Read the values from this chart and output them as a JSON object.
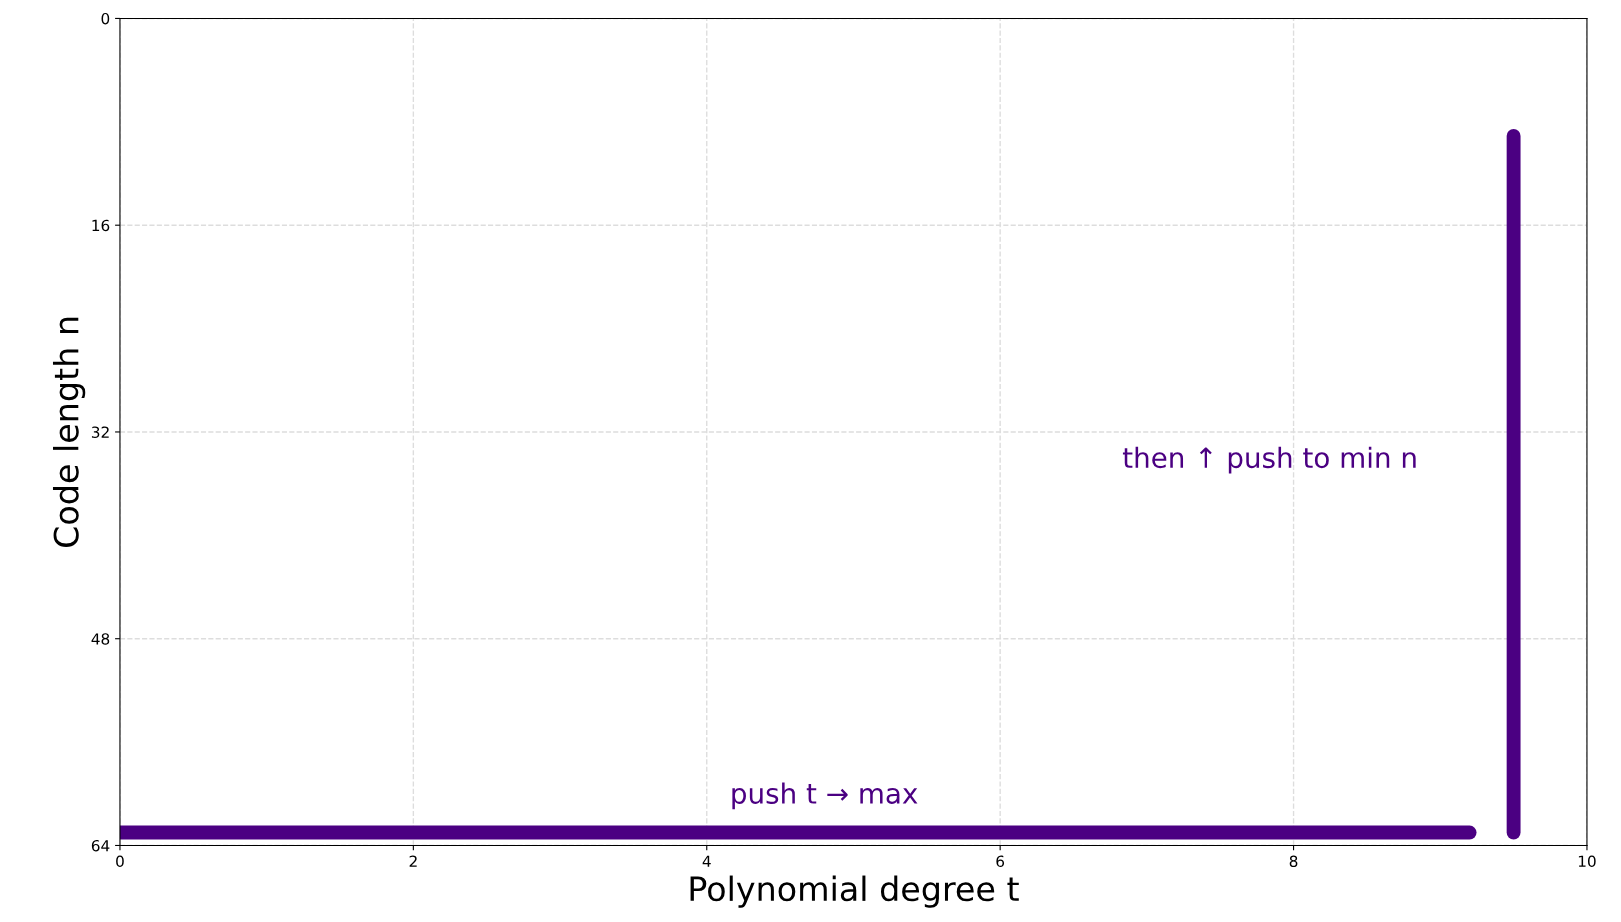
{
  "chart_data": {
    "type": "line",
    "xlabel": "Polynomial degree t",
    "ylabel": "Code length n",
    "series": [
      {
        "x": [
          0,
          9.2
        ],
        "values": [
          63,
          63
        ],
        "color": "#4b0082"
      },
      {
        "x": [
          9.5,
          9.5
        ],
        "values": [
          63,
          9.1
        ],
        "color": "#4b0082"
      }
    ],
    "annotations": [
      "push t → max",
      "then ↑ push to min n"
    ],
    "xlim": [
      0,
      10
    ],
    "xticks": [
      0,
      2,
      4,
      6,
      8,
      10
    ],
    "ylim": [
      64,
      0
    ],
    "yticks": [
      0,
      16,
      32,
      48,
      64
    ],
    "grid": true,
    "line_style": "solid"
  }
}
